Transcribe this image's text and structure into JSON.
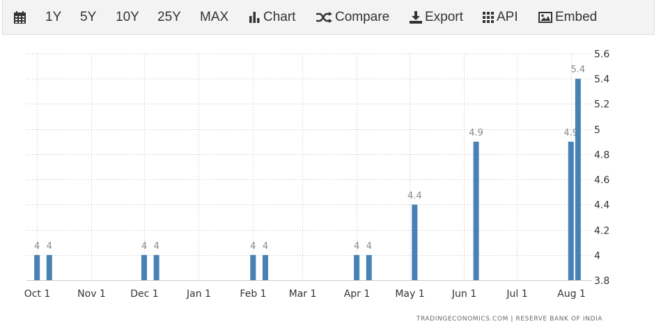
{
  "toolbar": {
    "items": [
      {
        "label": "",
        "icon": "calendar-icon"
      },
      {
        "label": "1Y"
      },
      {
        "label": "5Y"
      },
      {
        "label": "10Y"
      },
      {
        "label": "25Y"
      },
      {
        "label": "MAX"
      },
      {
        "label": "Chart",
        "icon": "bar-chart-icon"
      },
      {
        "label": "Compare",
        "icon": "shuffle-icon"
      },
      {
        "label": "Export",
        "icon": "download-icon"
      },
      {
        "label": "API",
        "icon": "grid-icon"
      },
      {
        "label": "Embed",
        "icon": "image-icon"
      }
    ]
  },
  "source": "TRADINGECONOMICS.COM | RESERVE BANK OF INDIA",
  "colors": {
    "bar": "#4682b4",
    "grid": "#d9d9d9",
    "label": "#888888",
    "text": "#333333"
  },
  "chart_data": {
    "type": "bar",
    "grid": true,
    "ylim": [
      3.8,
      5.6
    ],
    "yticks": [
      "3.8",
      "4",
      "4.2",
      "4.4",
      "4.6",
      "4.8",
      "5",
      "5.2",
      "5.4",
      "5.6"
    ],
    "xticks": [
      "Oct 1",
      "Nov 1",
      "Dec 1",
      "Jan 1",
      "Feb 1",
      "Mar 1",
      "Apr 1",
      "May 1",
      "Jun 1",
      "Jul 1",
      "Aug 1"
    ],
    "points": [
      {
        "date": "2021-10-01",
        "value": 4,
        "label": "4"
      },
      {
        "date": "2021-10-08",
        "value": 4,
        "label": "4"
      },
      {
        "date": "2021-12-01",
        "value": 4,
        "label": "4"
      },
      {
        "date": "2021-12-08",
        "value": 4,
        "label": "4"
      },
      {
        "date": "2022-02-01",
        "value": 4,
        "label": "4"
      },
      {
        "date": "2022-02-08",
        "value": 4,
        "label": "4"
      },
      {
        "date": "2022-04-01",
        "value": 4,
        "label": "4"
      },
      {
        "date": "2022-04-08",
        "value": 4,
        "label": "4"
      },
      {
        "date": "2022-05-04",
        "value": 4.4,
        "label": "4.4"
      },
      {
        "date": "2022-06-08",
        "value": 4.9,
        "label": "4.9"
      },
      {
        "date": "2022-08-01",
        "value": 4.9,
        "label": "4.9"
      },
      {
        "date": "2022-08-05",
        "value": 5.4,
        "label": "5.4"
      }
    ]
  }
}
